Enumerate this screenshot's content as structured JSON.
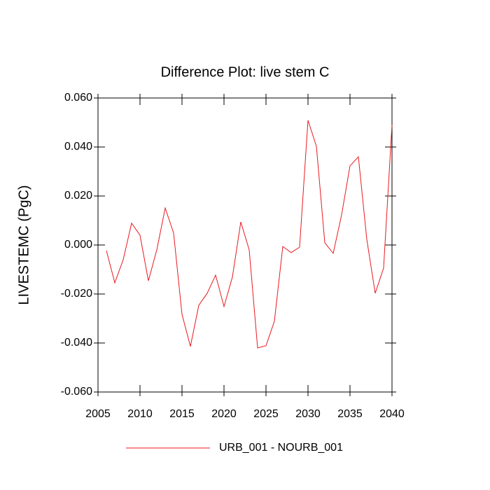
{
  "chart_data": {
    "type": "line",
    "title": "Difference Plot: live stem C",
    "y_label": "LIVESTEMC  (PgC)",
    "x": [
      2006,
      2007,
      2008,
      2009,
      2010,
      2011,
      2012,
      2013,
      2014,
      2015,
      2016,
      2017,
      2018,
      2019,
      2020,
      2021,
      2022,
      2023,
      2024,
      2025,
      2026,
      2027,
      2028,
      2029,
      2030,
      2031,
      2032,
      2033,
      2034,
      2035,
      2036,
      2037,
      2038,
      2039,
      2040
    ],
    "series": [
      {
        "name": "URB_001 - NOURB_001",
        "color": "#e8191f",
        "values": [
          -0.0023,
          -0.0154,
          -0.006,
          0.0089,
          0.004,
          -0.0146,
          -0.002,
          0.0151,
          0.0049,
          -0.0283,
          -0.0414,
          -0.0246,
          -0.0197,
          -0.0123,
          -0.0251,
          -0.0131,
          0.0094,
          -0.002,
          -0.042,
          -0.0411,
          -0.0311,
          -0.0006,
          -0.0031,
          -0.0009,
          0.0509,
          0.0403,
          0.0009,
          -0.0034,
          0.0123,
          0.0323,
          0.036,
          0.0023,
          -0.0197,
          -0.0094,
          0.049
        ]
      }
    ],
    "xlim": [
      2005,
      2040
    ],
    "xticks": [
      2005,
      2010,
      2015,
      2020,
      2025,
      2030,
      2035,
      2040
    ],
    "ylim": [
      -0.06,
      0.06
    ],
    "yticks": [
      {
        "value": -0.06,
        "label": "-0.060"
      },
      {
        "value": -0.04,
        "label": "-0.040"
      },
      {
        "value": -0.02,
        "label": "-0.020"
      },
      {
        "value": 0,
        "label": "0.000"
      },
      {
        "value": 0.02,
        "label": "0.020"
      },
      {
        "value": 0.04,
        "label": "0.040"
      },
      {
        "value": 0.06,
        "label": "0.060"
      }
    ]
  }
}
